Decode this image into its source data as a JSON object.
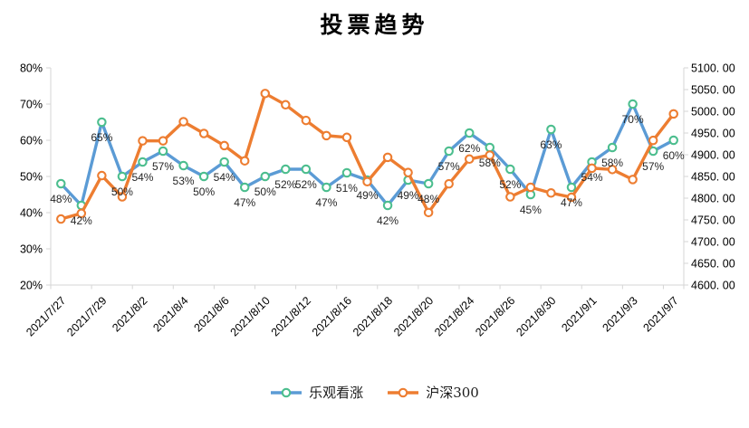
{
  "chart_data": {
    "type": "line",
    "title": "投票趋势",
    "n_points": 31,
    "x_tick_indices": [
      0,
      2,
      4,
      6,
      8,
      10,
      12,
      14,
      16,
      18,
      20,
      22,
      24,
      26,
      28,
      30
    ],
    "x_tick_labels": [
      "2021/7/27",
      "2021/7/29",
      "2021/8/2",
      "2021/8/4",
      "2021/8/6",
      "2021/8/10",
      "2021/8/12",
      "2021/8/16",
      "2021/8/18",
      "2021/8/20",
      "2021/8/24",
      "2021/8/26",
      "2021/8/30",
      "2021/9/1",
      "2021/9/3",
      "2021/9/7"
    ],
    "left_axis": {
      "min": 20,
      "max": 80,
      "step": 10,
      "labels": [
        "20%",
        "30%",
        "40%",
        "50%",
        "60%",
        "70%",
        "80%"
      ]
    },
    "right_axis": {
      "min": 4600,
      "max": 5100,
      "step": 50,
      "labels": [
        "4600. 00",
        "4650. 00",
        "4700. 00",
        "4750. 00",
        "4800. 00",
        "4850. 00",
        "4900. 00",
        "4950. 00",
        "5000. 00",
        "5050. 00",
        "5100. 00"
      ]
    },
    "series": [
      {
        "name": "乐观看涨",
        "axis": "left",
        "line_color": "#5B9BD5",
        "marker_color": "#4CBE8E",
        "data_labels": true,
        "label_suffix": "%",
        "values": [
          48,
          42,
          65,
          50,
          54,
          57,
          53,
          50,
          54,
          47,
          50,
          52,
          52,
          47,
          51,
          49,
          42,
          49,
          48,
          57,
          62,
          58,
          52,
          45,
          63,
          47,
          54,
          58,
          70,
          57,
          60
        ]
      },
      {
        "name": "沪深300",
        "axis": "right",
        "line_color": "#ED7D31",
        "marker_color": "#ED7D31",
        "data_labels": false,
        "label_suffix": "",
        "values": [
          4752,
          4765,
          4852,
          4803,
          4932,
          4932,
          4976,
          4949,
          4921,
          4886,
          5041,
          5015,
          4979,
          4944,
          4940,
          4838,
          4894,
          4859,
          4767,
          4833,
          4890,
          4899,
          4803,
          4825,
          4812,
          4802,
          4869,
          4866,
          4843,
          4933,
          4994
        ]
      }
    ],
    "legend_position": "bottom",
    "grid": false,
    "colors": {
      "axis_line": "#D6D6D6",
      "tick_text": "#000000",
      "data_label_text": "#262626",
      "background": "#ffffff"
    }
  }
}
